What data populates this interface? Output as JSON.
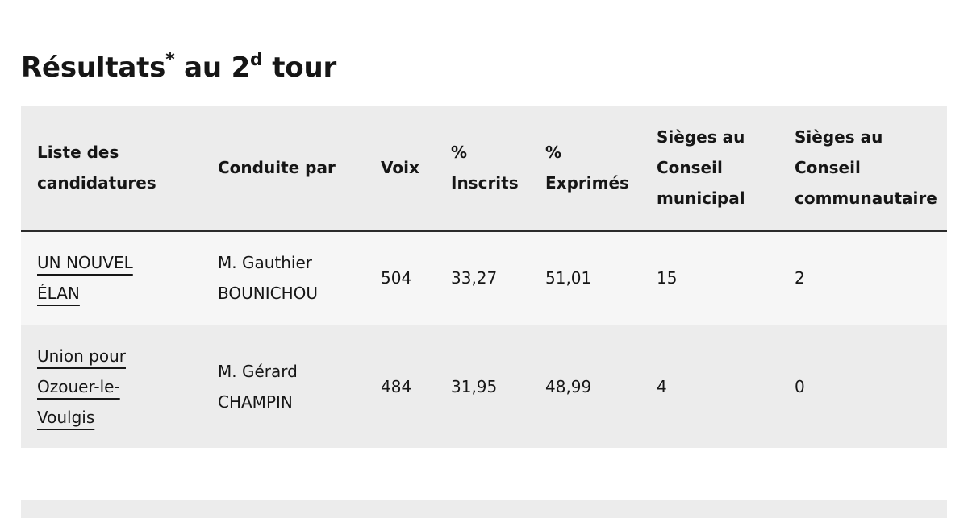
{
  "heading": {
    "prefix": "Résultats",
    "asterisk": "*",
    "middle": " au 2",
    "ordinal_sup": "d",
    "suffix": " tour"
  },
  "table": {
    "headers": [
      "Liste des candidatures",
      "Conduite par",
      "Voix",
      "% Inscrits",
      "% Exprimés",
      "Sièges au Conseil municipal",
      "Sièges au Conseil communautaire"
    ],
    "rows": [
      {
        "liste": "UN NOUVEL ÉLAN",
        "conduite": "M. Gauthier BOUNICHOU",
        "voix": "504",
        "pct_inscrits": "33,27",
        "pct_exprimes": "51,01",
        "sieges_municipal": "15",
        "sieges_communautaire": "2"
      },
      {
        "liste": "Union pour Ozouer-le-Voulgis",
        "conduite": "M. Gérard CHAMPIN",
        "voix": "484",
        "pct_inscrits": "31,95",
        "pct_exprimes": "48,99",
        "sieges_municipal": "4",
        "sieges_communautaire": "0"
      }
    ]
  }
}
